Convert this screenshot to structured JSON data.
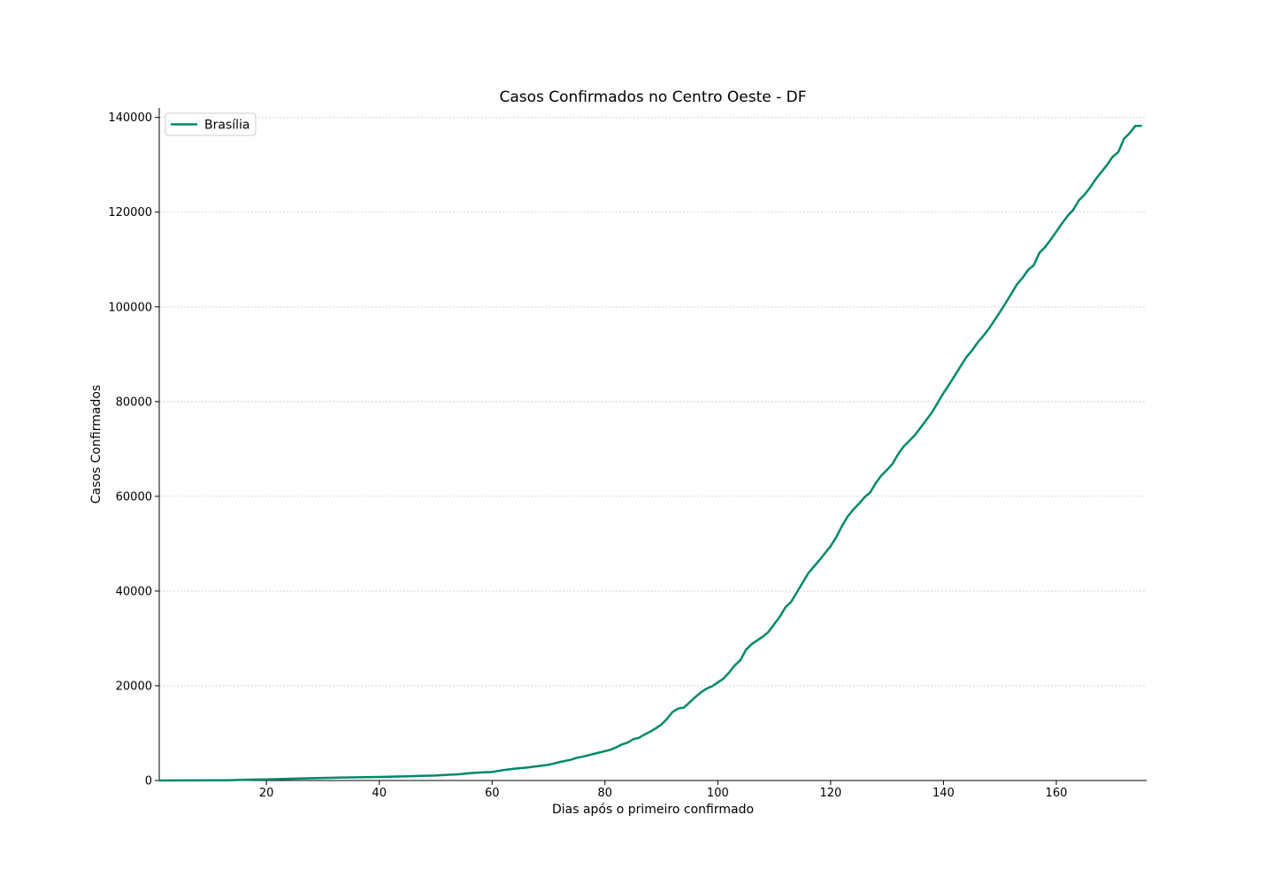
{
  "chart_data": {
    "type": "line",
    "title": "Casos Confirmados no Centro Oeste - DF",
    "xlabel": "Dias após o primeiro confirmado",
    "ylabel": "Casos Confirmados",
    "xlim": [
      1,
      176
    ],
    "ylim": [
      0,
      142000
    ],
    "x_ticks": [
      20,
      40,
      60,
      80,
      100,
      120,
      140,
      160
    ],
    "y_ticks": [
      0,
      20000,
      40000,
      60000,
      80000,
      100000,
      120000,
      140000
    ],
    "y_tick_labels": [
      "0",
      "20000",
      "40000",
      "60000",
      "80000",
      "100000",
      "120000",
      "140000"
    ],
    "grid": "horizontal dashed",
    "legend_position": "top-left",
    "colors": {
      "series": "#00886a",
      "grid": "#cccccc",
      "axis": "#000000"
    },
    "series": [
      {
        "name": "Brasília",
        "x": [
          1,
          5,
          10,
          13,
          15,
          18,
          20,
          25,
          30,
          35,
          40,
          45,
          48,
          50,
          52,
          54,
          56,
          58,
          60,
          62,
          64,
          66,
          68,
          70,
          72,
          74,
          75,
          76,
          78,
          80,
          81,
          82,
          83,
          84,
          85,
          86,
          87,
          88,
          89,
          90,
          91,
          92,
          93,
          94,
          95,
          96,
          97,
          98,
          99,
          100,
          101,
          102,
          103,
          104,
          105,
          106,
          107,
          108,
          109,
          110,
          111,
          112,
          113,
          114,
          115,
          116,
          117,
          118,
          119,
          120,
          121,
          122,
          123,
          124,
          125,
          126,
          127,
          128,
          129,
          130,
          131,
          132,
          133,
          134,
          135,
          136,
          137,
          138,
          139,
          140,
          141,
          142,
          143,
          144,
          145,
          146,
          147,
          148,
          149,
          150,
          151,
          152,
          153,
          154,
          155,
          156,
          157,
          158,
          159,
          160,
          161,
          162,
          163,
          164,
          165,
          166,
          167,
          168,
          169,
          170,
          171,
          172,
          173,
          174,
          175
        ],
        "values": [
          0,
          10,
          30,
          60,
          120,
          200,
          250,
          400,
          550,
          650,
          750,
          900,
          1000,
          1050,
          1200,
          1300,
          1550,
          1700,
          1800,
          2200,
          2500,
          2700,
          3000,
          3300,
          3900,
          4400,
          4800,
          5000,
          5600,
          6200,
          6500,
          7000,
          7600,
          8000,
          8700,
          9000,
          9700,
          10300,
          11000,
          11800,
          13000,
          14500,
          15200,
          15400,
          16500,
          17600,
          18600,
          19400,
          19900,
          20700,
          21500,
          22800,
          24300,
          25400,
          27600,
          28800,
          29600,
          30400,
          31400,
          33000,
          34600,
          36600,
          37700,
          39700,
          41700,
          43700,
          45100,
          46500,
          48000,
          49500,
          51400,
          53700,
          55700,
          57200,
          58400,
          59800,
          60800,
          62800,
          64400,
          65600,
          66900,
          69000,
          70600,
          71800,
          73000,
          74600,
          76200,
          77800,
          79800,
          81800,
          83600,
          85500,
          87400,
          89300,
          90700,
          92400,
          93800,
          95300,
          97100,
          98900,
          100800,
          102700,
          104700,
          106100,
          107800,
          108800,
          111400,
          112600,
          114200,
          115900,
          117600,
          119200,
          120500,
          122500,
          123700,
          125200,
          127000,
          128500,
          130000,
          131700,
          132700,
          135500,
          136700,
          138200,
          138200
        ]
      }
    ]
  }
}
